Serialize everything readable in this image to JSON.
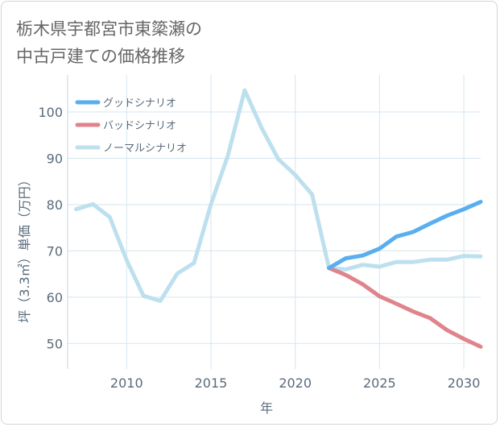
{
  "chart_data": {
    "type": "line",
    "title_lines": [
      "栃木県宇都宮市東簗瀬の",
      "中古戸建ての価格推移"
    ],
    "xlabel": "年",
    "ylabel": "坪（3.3㎡）単価（万円）",
    "xlim": [
      2006.5,
      2031
    ],
    "ylim": [
      44.5,
      108
    ],
    "x_ticks": [
      2010,
      2015,
      2020,
      2025,
      2030
    ],
    "y_ticks": [
      50,
      60,
      70,
      80,
      90,
      100
    ],
    "grid": true,
    "legend_position": "top-left",
    "series": [
      {
        "name": "グッドシナリオ",
        "color": "#5aaef0",
        "x": [
          2022,
          2023,
          2024,
          2025,
          2026,
          2027,
          2028,
          2029,
          2030,
          2031
        ],
        "y": [
          66.3,
          68.4,
          69.0,
          70.5,
          73.1,
          74.1,
          75.9,
          77.6,
          79.0,
          80.6
        ]
      },
      {
        "name": "バッドシナリオ",
        "color": "#e0848c",
        "x": [
          2022,
          2023,
          2024,
          2025,
          2026,
          2027,
          2028,
          2029,
          2030,
          2031
        ],
        "y": [
          66.3,
          64.8,
          62.8,
          60.2,
          58.6,
          56.9,
          55.5,
          52.9,
          51.0,
          49.3
        ]
      },
      {
        "name": "ノーマルシナリオ",
        "color": "#bde0ee",
        "x": [
          2007,
          2008,
          2009,
          2010,
          2011,
          2012,
          2013,
          2014,
          2015,
          2016,
          2017,
          2018,
          2019,
          2020,
          2021,
          2022,
          2023,
          2024,
          2025,
          2026,
          2027,
          2028,
          2029,
          2030,
          2031
        ],
        "y": [
          79.0,
          80.1,
          77.3,
          68.0,
          60.3,
          59.2,
          65.1,
          67.4,
          80.1,
          90.5,
          104.7,
          96.6,
          89.8,
          86.4,
          82.2,
          66.3,
          66.0,
          67.0,
          66.6,
          67.6,
          67.6,
          68.1,
          68.1,
          68.9,
          68.8
        ]
      }
    ]
  }
}
